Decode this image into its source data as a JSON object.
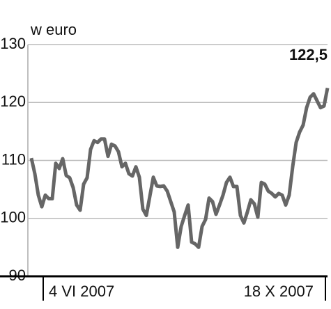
{
  "chart_data": {
    "type": "line",
    "y_label": "w euro",
    "color": "#666666",
    "categories": [
      "4 VI 2007",
      null,
      null,
      null,
      null,
      null,
      null,
      null,
      null,
      null,
      null,
      null,
      null,
      null,
      null,
      null,
      null,
      null,
      null,
      null,
      null,
      null,
      null,
      null,
      null,
      null,
      null,
      null,
      null,
      null,
      null,
      null,
      null,
      null,
      null,
      null,
      null,
      null,
      null,
      null,
      null,
      null,
      null,
      null,
      null,
      null,
      null,
      null,
      null,
      null,
      null,
      null,
      null,
      null,
      null,
      null,
      null,
      null,
      null,
      null,
      null,
      null,
      null,
      null,
      null,
      null,
      null,
      null,
      null,
      null,
      null,
      null,
      null,
      null,
      null,
      null,
      null,
      null,
      null,
      null,
      null,
      null,
      null,
      null,
      null,
      "18 X 2007"
    ],
    "values": [
      110.4,
      107.7,
      104,
      102,
      104,
      103.4,
      103.4,
      109.5,
      108.6,
      110.3,
      107.4,
      107,
      105.3,
      102.3,
      101.4,
      105.9,
      107,
      111.9,
      113.4,
      113.1,
      113.7,
      113.7,
      110.7,
      112.8,
      112.5,
      111.5,
      108.9,
      109.5,
      107.7,
      107.3,
      108.9,
      107.1,
      101.6,
      100.5,
      103.8,
      107.1,
      105.6,
      105.5,
      105.6,
      104.7,
      102.9,
      101.1,
      95,
      98.6,
      100.5,
      102.3,
      95.9,
      95.6,
      95,
      98.6,
      99.8,
      103.5,
      102.9,
      100.7,
      102.3,
      104,
      106.2,
      107.1,
      105.5,
      105.5,
      100.5,
      99.2,
      101.1,
      103.2,
      102.5,
      100.2,
      106.2,
      105.9,
      104.7,
      104.3,
      103.7,
      104.3,
      104,
      102.3,
      104,
      108.9,
      113.1,
      114.9,
      116.1,
      119.1,
      120.9,
      121.5,
      120.3,
      119.1,
      119.4,
      122.5
    ],
    "value_labels": [
      null,
      null,
      null,
      null,
      null,
      null,
      null,
      null,
      null,
      null,
      null,
      null,
      null,
      null,
      null,
      null,
      null,
      null,
      null,
      null,
      null,
      null,
      null,
      null,
      null,
      null,
      null,
      null,
      null,
      null,
      null,
      null,
      null,
      null,
      null,
      null,
      null,
      null,
      null,
      null,
      null,
      null,
      null,
      null,
      null,
      null,
      null,
      null,
      null,
      null,
      null,
      null,
      null,
      null,
      null,
      null,
      null,
      null,
      null,
      null,
      null,
      null,
      null,
      null,
      null,
      null,
      null,
      null,
      null,
      null,
      null,
      null,
      null,
      null,
      null,
      null,
      null,
      null,
      null,
      null,
      null,
      null,
      null,
      null,
      null,
      "122,5"
    ],
    "ylim": [
      90,
      130
    ],
    "yticks": [
      90,
      100,
      110,
      120,
      130
    ],
    "grid": true
  }
}
